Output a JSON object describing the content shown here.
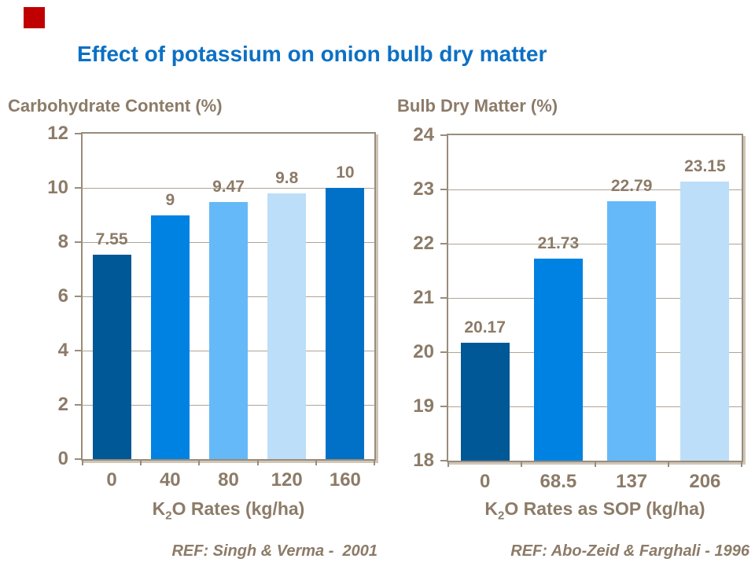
{
  "slide": {
    "title": "Effect of potassium on onion bulb dry matter",
    "title_color": "#0c70c4",
    "text_color": "#8c7b68",
    "accent_square_color": "#c00000",
    "background_color": "#ffffff"
  },
  "chart_data": [
    {
      "type": "bar",
      "title": "Carbohydrate Content (%)",
      "categories": [
        "0",
        "40",
        "80",
        "120",
        "160"
      ],
      "values": [
        7.55,
        9,
        9.47,
        9.8,
        10
      ],
      "value_labels": [
        "7.55",
        "9",
        "9.47",
        "9.8",
        "10"
      ],
      "bar_colors": [
        "#005896",
        "#0082e2",
        "#65b9f8",
        "#bcdef8",
        "#0071c6"
      ],
      "xlabel_pre": "K",
      "xlabel_sub": "2",
      "xlabel_post": "O Rates (kg/ha)",
      "ylabel": "",
      "ylim": [
        0,
        12
      ],
      "ytick_step": 2,
      "grid": "horizontal",
      "legend": "none",
      "ref": "REF: Singh & Verma -  2001"
    },
    {
      "type": "bar",
      "title": "Bulb Dry Matter (%)",
      "categories": [
        "0",
        "68.5",
        "137",
        "206"
      ],
      "values": [
        20.17,
        21.73,
        22.79,
        23.15
      ],
      "value_labels": [
        "20.17",
        "21.73",
        "22.79",
        "23.15"
      ],
      "bar_colors": [
        "#005896",
        "#0082e2",
        "#65b9f8",
        "#bcdef8"
      ],
      "xlabel_pre": "K",
      "xlabel_sub": "2",
      "xlabel_post": "O Rates as SOP (kg/ha)",
      "ylabel": "",
      "ylim": [
        18,
        24
      ],
      "ytick_step": 1,
      "grid": "horizontal",
      "legend": "none",
      "ref": "REF: Abo-Zeid & Farghali - 1996"
    }
  ]
}
